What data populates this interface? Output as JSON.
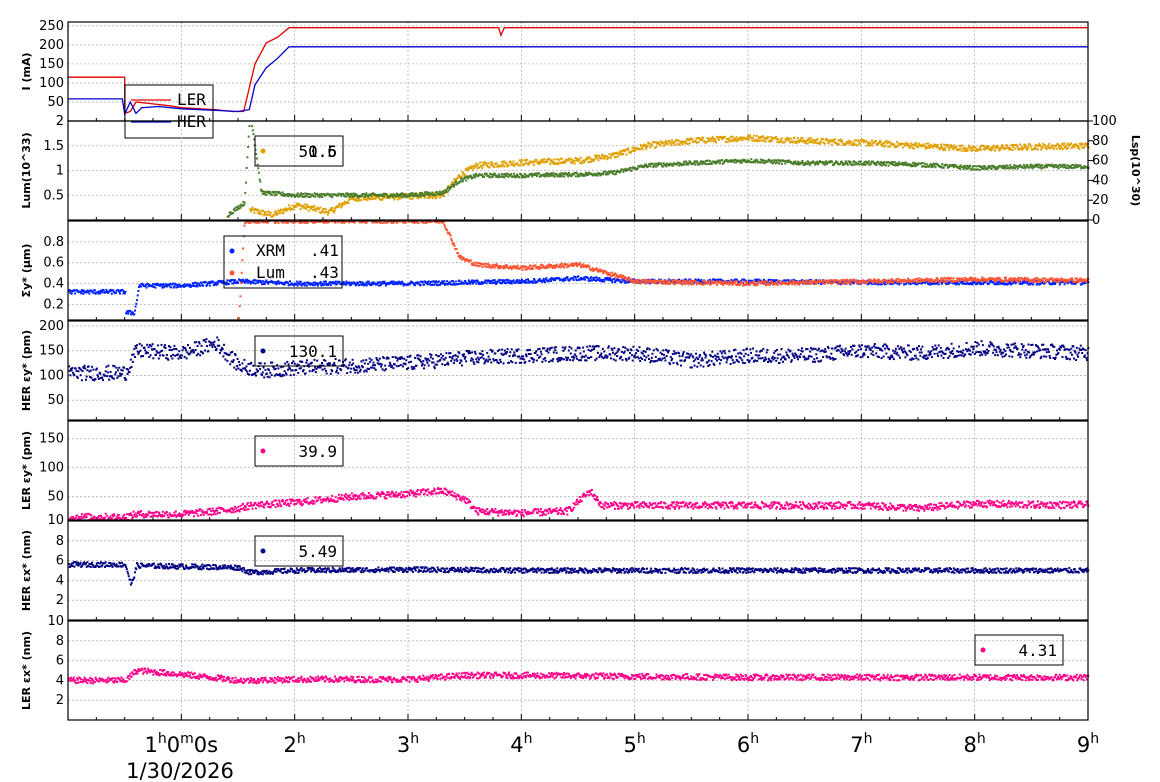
{
  "chart_data": {
    "type": "line",
    "x_unit": "hours",
    "x_range": [
      0,
      9
    ],
    "x_ticks": [
      {
        "v": 1,
        "base": "1",
        "sup": "h",
        "rest": "0",
        "sup2": "m",
        "rest2": "0s"
      },
      {
        "v": 2,
        "base": "2",
        "sup": "h"
      },
      {
        "v": 3,
        "base": "3",
        "sup": "h"
      },
      {
        "v": 4,
        "base": "4",
        "sup": "h"
      },
      {
        "v": 5,
        "base": "5",
        "sup": "h"
      },
      {
        "v": 6,
        "base": "6",
        "sup": "h"
      },
      {
        "v": 7,
        "base": "7",
        "sup": "h"
      },
      {
        "v": 8,
        "base": "8",
        "sup": "h"
      },
      {
        "v": 9,
        "base": "9",
        "sup": "h"
      }
    ],
    "date_label": "1/30/2026",
    "grid": true,
    "panels": [
      {
        "ylabel": "I (mA)",
        "ylim": [
          0,
          260
        ],
        "yticks": [
          50,
          100,
          150,
          200,
          250
        ],
        "legend": {
          "entries": [
            "LER",
            "HER"
          ],
          "position": "top-left"
        },
        "series": [
          {
            "name": "LER",
            "color": "#e00000",
            "style": "line",
            "points": [
              [
                0,
                115
              ],
              [
                0.5,
                115
              ],
              [
                0.5,
                20
              ],
              [
                0.55,
                25
              ],
              [
                0.6,
                50
              ],
              [
                0.75,
                45
              ],
              [
                0.9,
                40
              ],
              [
                1.0,
                35
              ],
              [
                1.3,
                30
              ],
              [
                1.45,
                25
              ],
              [
                1.55,
                25
              ],
              [
                1.65,
                150
              ],
              [
                1.75,
                205
              ],
              [
                1.85,
                220
              ],
              [
                1.95,
                245
              ],
              [
                3.8,
                245
              ],
              [
                3.82,
                225
              ],
              [
                3.85,
                245
              ],
              [
                9,
                245
              ]
            ]
          },
          {
            "name": "HER",
            "color": "#0000cc",
            "style": "line",
            "points": [
              [
                0,
                58
              ],
              [
                0.48,
                58
              ],
              [
                0.5,
                18
              ],
              [
                0.55,
                50
              ],
              [
                0.6,
                20
              ],
              [
                0.65,
                35
              ],
              [
                0.8,
                38
              ],
              [
                1.0,
                32
              ],
              [
                1.3,
                28
              ],
              [
                1.5,
                25
              ],
              [
                1.6,
                30
              ],
              [
                1.65,
                95
              ],
              [
                1.75,
                140
              ],
              [
                1.85,
                165
              ],
              [
                1.95,
                195
              ],
              [
                9,
                195
              ]
            ]
          }
        ]
      },
      {
        "ylabel": "Lum(10^33)",
        "ylim": [
          0,
          2
        ],
        "yticks": [
          0.5,
          1,
          1.5,
          2
        ],
        "y2label": "Lsp(10^30)",
        "y2lim": [
          0,
          100
        ],
        "y2ticks": [
          0,
          20,
          40,
          60,
          80,
          100
        ],
        "legend": {
          "text": "50.6",
          "overlap_text": "1.5",
          "position": "top-left"
        },
        "series": [
          {
            "name": "",
            "axis": "y2",
            "color": "#e0a000",
            "style": "scatter",
            "noise": 3,
            "points": [
              [
                1.6,
                10
              ],
              [
                1.8,
                5
              ],
              [
                2.0,
                15
              ],
              [
                2.3,
                8
              ],
              [
                2.5,
                22
              ],
              [
                3.0,
                24
              ],
              [
                3.3,
                25
              ],
              [
                3.45,
                45
              ],
              [
                3.6,
                55
              ],
              [
                4.0,
                58
              ],
              [
                4.5,
                60
              ],
              [
                4.8,
                65
              ],
              [
                5.1,
                75
              ],
              [
                5.5,
                80
              ],
              [
                6.0,
                83
              ],
              [
                6.5,
                80
              ],
              [
                7.0,
                78
              ],
              [
                7.5,
                75
              ],
              [
                8.0,
                72
              ],
              [
                8.5,
                74
              ],
              [
                9.0,
                75
              ]
            ]
          },
          {
            "name": "",
            "axis": "y",
            "color": "#4a7d2a",
            "style": "scatter",
            "noise": 0.04,
            "points": [
              [
                1.4,
                0.1
              ],
              [
                1.55,
                0.35
              ],
              [
                1.6,
                2.2
              ],
              [
                1.7,
                0.55
              ],
              [
                2.0,
                0.5
              ],
              [
                2.5,
                0.5
              ],
              [
                3.0,
                0.5
              ],
              [
                3.3,
                0.55
              ],
              [
                3.45,
                0.8
              ],
              [
                3.6,
                0.9
              ],
              [
                4.0,
                0.9
              ],
              [
                4.5,
                0.92
              ],
              [
                4.8,
                0.95
              ],
              [
                5.1,
                1.1
              ],
              [
                5.5,
                1.15
              ],
              [
                6.0,
                1.2
              ],
              [
                6.5,
                1.15
              ],
              [
                7.0,
                1.15
              ],
              [
                7.5,
                1.12
              ],
              [
                8.0,
                1.05
              ],
              [
                8.5,
                1.08
              ],
              [
                9.0,
                1.08
              ]
            ]
          }
        ]
      },
      {
        "ylabel": "Σy* (μm)",
        "ylim": [
          0.05,
          1.0
        ],
        "yticks": [
          0.2,
          0.4,
          0.6,
          0.8
        ],
        "legend": {
          "entries": [
            "XRM",
            "Lum"
          ],
          "values": [
            ".41",
            ".43"
          ],
          "position": "top-left"
        },
        "series": [
          {
            "name": "XRM",
            "color": "#0022ff",
            "style": "scatter",
            "noise": 0.02,
            "points": [
              [
                0,
                0.32
              ],
              [
                0.5,
                0.32
              ],
              [
                0.5,
                0.12
              ],
              [
                0.58,
                0.12
              ],
              [
                0.62,
                0.38
              ],
              [
                1.0,
                0.38
              ],
              [
                1.5,
                0.42
              ],
              [
                2.0,
                0.4
              ],
              [
                3.0,
                0.4
              ],
              [
                4.0,
                0.42
              ],
              [
                4.5,
                0.45
              ],
              [
                5.0,
                0.42
              ],
              [
                6.0,
                0.42
              ],
              [
                7.0,
                0.41
              ],
              [
                8.0,
                0.41
              ],
              [
                9.0,
                0.41
              ]
            ]
          },
          {
            "name": "Lum",
            "color": "#ff5533",
            "style": "scatter",
            "noise": 0.02,
            "points": [
              [
                1.5,
                0.05
              ],
              [
                1.55,
                1.0
              ],
              [
                3.3,
                1.0
              ],
              [
                3.45,
                0.65
              ],
              [
                3.6,
                0.58
              ],
              [
                4.0,
                0.55
              ],
              [
                4.5,
                0.58
              ],
              [
                5.0,
                0.42
              ],
              [
                6.0,
                0.4
              ],
              [
                7.0,
                0.42
              ],
              [
                8.0,
                0.44
              ],
              [
                9.0,
                0.43
              ]
            ]
          }
        ]
      },
      {
        "ylabel": "HER εy* (pm)",
        "ylim": [
          10,
          210
        ],
        "yticks": [
          50,
          100,
          150,
          200
        ],
        "legend": {
          "text": "130.1",
          "position": "top-left"
        },
        "series": [
          {
            "name": "",
            "color": "#000080",
            "style": "scatter",
            "noise": 15,
            "points": [
              [
                0,
                105
              ],
              [
                0.5,
                105
              ],
              [
                0.6,
                150
              ],
              [
                1.0,
                145
              ],
              [
                1.3,
                165
              ],
              [
                1.5,
                120
              ],
              [
                1.7,
                110
              ],
              [
                2.0,
                115
              ],
              [
                2.5,
                120
              ],
              [
                3.0,
                125
              ],
              [
                3.5,
                135
              ],
              [
                4.0,
                140
              ],
              [
                4.5,
                145
              ],
              [
                5.0,
                145
              ],
              [
                5.5,
                130
              ],
              [
                6.0,
                140
              ],
              [
                6.5,
                140
              ],
              [
                7.0,
                150
              ],
              [
                7.5,
                145
              ],
              [
                8.0,
                155
              ],
              [
                8.5,
                150
              ],
              [
                9.0,
                145
              ]
            ]
          }
        ]
      },
      {
        "ylabel": "LER εy* (pm)",
        "ylim": [
          10,
          180
        ],
        "yticks": [
          10,
          50,
          100,
          150
        ],
        "legend": {
          "text": "39.9",
          "position": "top-left"
        },
        "series": [
          {
            "name": "",
            "color": "#ff0088",
            "style": "scatter",
            "noise": 6,
            "points": [
              [
                0,
                15
              ],
              [
                0.5,
                15
              ],
              [
                0.6,
                20
              ],
              [
                1.0,
                20
              ],
              [
                1.3,
                25
              ],
              [
                1.5,
                30
              ],
              [
                1.6,
                35
              ],
              [
                2.0,
                40
              ],
              [
                2.5,
                50
              ],
              [
                3.0,
                55
              ],
              [
                3.3,
                60
              ],
              [
                3.5,
                45
              ],
              [
                3.6,
                25
              ],
              [
                4.0,
                22
              ],
              [
                4.4,
                25
              ],
              [
                4.6,
                60
              ],
              [
                4.7,
                35
              ],
              [
                5.0,
                35
              ],
              [
                6.0,
                35
              ],
              [
                7.0,
                35
              ],
              [
                7.5,
                30
              ],
              [
                8.0,
                38
              ],
              [
                8.5,
                36
              ],
              [
                9.0,
                36
              ]
            ]
          }
        ]
      },
      {
        "ylabel": "HER εx* (nm)",
        "ylim": [
          0,
          10
        ],
        "yticks": [
          2,
          4,
          6,
          8
        ],
        "legend": {
          "text": "5.49",
          "position": "top-left"
        },
        "series": [
          {
            "name": "",
            "color": "#000080",
            "style": "scatter",
            "noise": 0.25,
            "points": [
              [
                0,
                5.6
              ],
              [
                0.5,
                5.6
              ],
              [
                0.55,
                3.5
              ],
              [
                0.6,
                5.5
              ],
              [
                1.0,
                5.4
              ],
              [
                1.5,
                5.3
              ],
              [
                1.6,
                4.8
              ],
              [
                2.0,
                5.0
              ],
              [
                3.0,
                5.1
              ],
              [
                4.0,
                5.0
              ],
              [
                5.0,
                5.0
              ],
              [
                6.0,
                5.0
              ],
              [
                7.0,
                5.0
              ],
              [
                8.0,
                5.0
              ],
              [
                9.0,
                5.0
              ]
            ]
          }
        ]
      },
      {
        "ylabel": "LER εx* (nm)",
        "ylim": [
          0,
          10
        ],
        "yticks": [
          2,
          4,
          6,
          8,
          10
        ],
        "legend": {
          "text": "4.31",
          "position": "top-right"
        },
        "series": [
          {
            "name": "",
            "color": "#ff0088",
            "style": "scatter",
            "noise": 0.3,
            "points": [
              [
                0,
                4.0
              ],
              [
                0.5,
                4.0
              ],
              [
                0.6,
                5.0
              ],
              [
                1.0,
                4.6
              ],
              [
                1.5,
                4.0
              ],
              [
                1.6,
                4.0
              ],
              [
                2.0,
                4.1
              ],
              [
                3.0,
                4.1
              ],
              [
                3.5,
                4.5
              ],
              [
                4.0,
                4.5
              ],
              [
                5.0,
                4.4
              ],
              [
                6.0,
                4.3
              ],
              [
                7.0,
                4.3
              ],
              [
                8.0,
                4.3
              ],
              [
                9.0,
                4.3
              ]
            ]
          }
        ]
      }
    ]
  }
}
